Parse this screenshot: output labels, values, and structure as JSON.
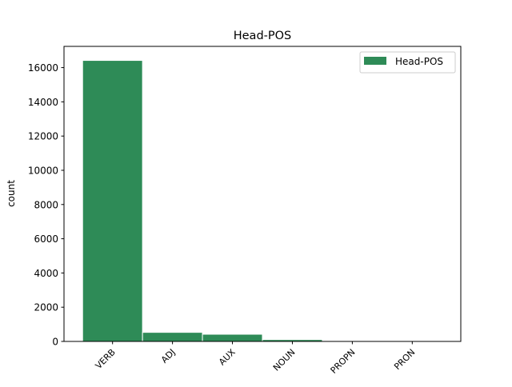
{
  "chart_data": {
    "type": "bar",
    "title": "Head-POS",
    "xlabel": "",
    "ylabel": "count",
    "categories": [
      "VERB",
      "ADJ",
      "AUX",
      "NOUN",
      "PROPN",
      "PRON"
    ],
    "series": [
      {
        "name": "Head-POS",
        "values": [
          16420,
          530,
          420,
          110,
          5,
          3
        ],
        "color": "#2e8b57"
      }
    ],
    "yticks": [
      0,
      2000,
      4000,
      6000,
      8000,
      10000,
      12000,
      14000,
      16000
    ],
    "ylim": [
      0,
      17241
    ],
    "xlim": [
      -0.81,
      5.81
    ],
    "grid": false,
    "legend": {
      "placement": "top-right",
      "entries": [
        "Head-POS"
      ]
    }
  }
}
